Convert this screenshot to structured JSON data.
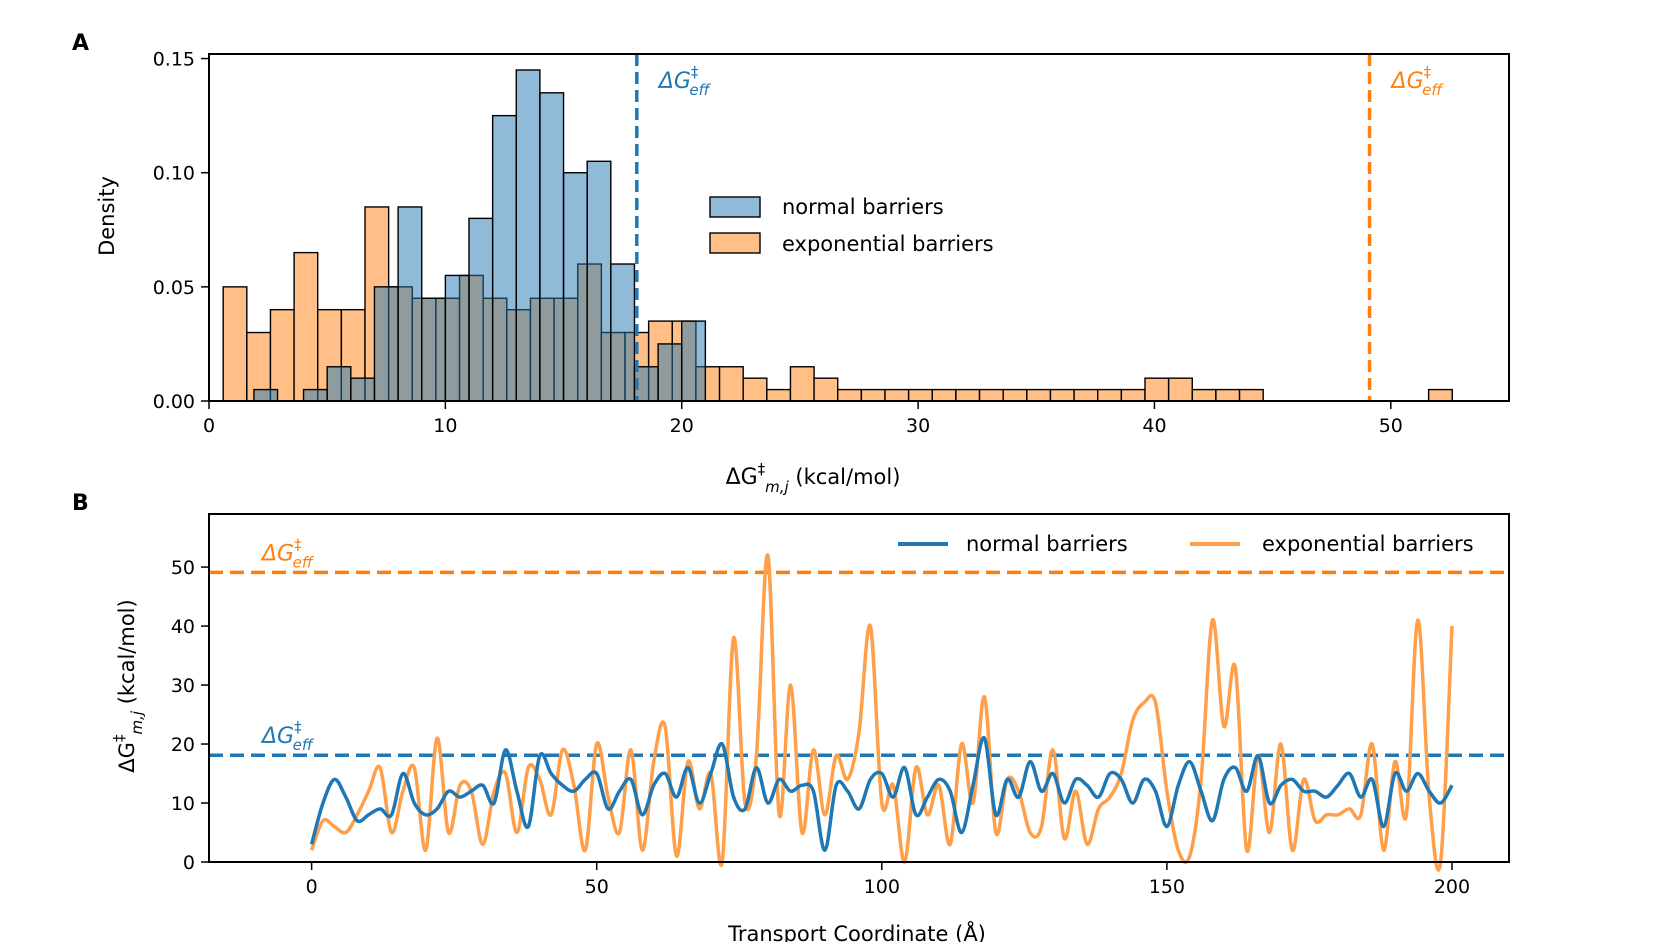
{
  "colors": {
    "blue": "#1f77b4",
    "orange": "#ff7f0e",
    "blue_fill": "#8db4d6",
    "orange_fill": "#ffbf86",
    "line_orange": "#ff9f4a"
  },
  "chart_data": [
    {
      "panel": "A",
      "type": "bar",
      "subtype": "histogram",
      "xlabel": "ΔG‡m,j (kcal/mol)",
      "xlabel_main": "ΔG",
      "xlabel_sup": "‡",
      "xlabel_sub": "m,j",
      "xlabel_unit": " (kcal/mol)",
      "ylabel": "Density",
      "xlim": [
        0,
        55
      ],
      "ylim": [
        0,
        0.152
      ],
      "xticks": [
        0,
        10,
        20,
        30,
        40,
        50
      ],
      "yticks": [
        0.0,
        0.05,
        0.1,
        0.15
      ],
      "ytick_labels": [
        "0.00",
        "0.05",
        "0.10",
        "0.15"
      ],
      "legend_position": "center",
      "series": [
        {
          "name": "normal barriers",
          "bin_width": 1.0,
          "bins": [
            [
              1.9,
              0.005
            ],
            [
              4.0,
              0.005
            ],
            [
              5.0,
              0.015
            ],
            [
              6.0,
              0.01
            ],
            [
              7.0,
              0.05
            ],
            [
              8.0,
              0.085
            ],
            [
              9.0,
              0.045
            ],
            [
              10.0,
              0.055
            ],
            [
              11.0,
              0.08
            ],
            [
              12.0,
              0.125
            ],
            [
              13.0,
              0.145
            ],
            [
              14.0,
              0.135
            ],
            [
              15.0,
              0.1
            ],
            [
              16.0,
              0.105
            ],
            [
              17.0,
              0.06
            ],
            [
              18.0,
              0.015
            ],
            [
              19.0,
              0.025
            ],
            [
              20.0,
              0.035
            ]
          ]
        },
        {
          "name": "exponential barriers",
          "bin_width": 1.0,
          "bins": [
            [
              0.6,
              0.05
            ],
            [
              1.6,
              0.03
            ],
            [
              2.6,
              0.04
            ],
            [
              3.6,
              0.065
            ],
            [
              4.6,
              0.04
            ],
            [
              5.6,
              0.04
            ],
            [
              6.6,
              0.085
            ],
            [
              7.6,
              0.05
            ],
            [
              8.6,
              0.045
            ],
            [
              9.6,
              0.045
            ],
            [
              10.6,
              0.055
            ],
            [
              11.6,
              0.045
            ],
            [
              12.6,
              0.04
            ],
            [
              13.6,
              0.045
            ],
            [
              14.6,
              0.045
            ],
            [
              15.6,
              0.06
            ],
            [
              16.6,
              0.03
            ],
            [
              17.6,
              0.03
            ],
            [
              18.6,
              0.035
            ],
            [
              19.6,
              0.035
            ],
            [
              20.6,
              0.015
            ],
            [
              21.6,
              0.015
            ],
            [
              22.6,
              0.01
            ],
            [
              23.6,
              0.005
            ],
            [
              24.6,
              0.015
            ],
            [
              25.6,
              0.01
            ],
            [
              26.6,
              0.005
            ],
            [
              27.6,
              0.005
            ],
            [
              28.6,
              0.005
            ],
            [
              29.6,
              0.005
            ],
            [
              30.6,
              0.005
            ],
            [
              31.6,
              0.005
            ],
            [
              32.6,
              0.005
            ],
            [
              33.6,
              0.005
            ],
            [
              34.6,
              0.005
            ],
            [
              35.6,
              0.005
            ],
            [
              36.6,
              0.005
            ],
            [
              37.6,
              0.005
            ],
            [
              38.6,
              0.005
            ],
            [
              39.6,
              0.01
            ],
            [
              40.6,
              0.01
            ],
            [
              41.6,
              0.005
            ],
            [
              42.6,
              0.005
            ],
            [
              43.6,
              0.005
            ],
            [
              51.6,
              0.005
            ]
          ]
        }
      ],
      "vlines": [
        {
          "x": 18.1,
          "series": "normal barriers",
          "label_main": "ΔG",
          "label_sup": "‡",
          "label_sub": "eff"
        },
        {
          "x": 49.1,
          "series": "exponential barriers",
          "label_main": "ΔG",
          "label_sup": "‡",
          "label_sub": "eff"
        }
      ]
    },
    {
      "panel": "B",
      "type": "line",
      "xlabel": "Transport Coordinate (Å)",
      "ylabel": "ΔG‡m,j (kcal/mol)",
      "ylabel_main": "ΔG",
      "ylabel_sup": "‡",
      "ylabel_sub": "m,j",
      "ylabel_unit": " (kcal/mol)",
      "xlim": [
        -18,
        210
      ],
      "ylim": [
        0,
        59
      ],
      "xticks": [
        0,
        50,
        100,
        150,
        200
      ],
      "yticks": [
        0,
        10,
        20,
        30,
        40,
        50
      ],
      "legend_position": "top-right",
      "series": [
        {
          "name": "normal barriers",
          "x": [
            0,
            2,
            4,
            6,
            8,
            10,
            12,
            14,
            16,
            18,
            20,
            22,
            24,
            26,
            28,
            30,
            32,
            34,
            36,
            38,
            40,
            42,
            44,
            46,
            48,
            50,
            52,
            54,
            56,
            58,
            60,
            62,
            64,
            66,
            68,
            70,
            72,
            74,
            76,
            78,
            80,
            82,
            84,
            86,
            88,
            90,
            92,
            94,
            96,
            98,
            100,
            102,
            104,
            106,
            108,
            110,
            112,
            114,
            116,
            118,
            120,
            122,
            124,
            126,
            128,
            130,
            132,
            134,
            136,
            138,
            140,
            142,
            144,
            146,
            148,
            150,
            152,
            154,
            156,
            158,
            160,
            162,
            164,
            166,
            168,
            170,
            172,
            174,
            176,
            178,
            180,
            182,
            184,
            186,
            188,
            190,
            192,
            194,
            196,
            198,
            200
          ],
          "values": [
            3,
            10,
            14,
            11,
            7,
            8,
            9,
            8,
            15,
            10,
            8,
            9,
            12,
            11,
            12,
            13,
            10,
            19,
            12,
            6,
            18,
            15,
            13,
            12,
            14,
            15,
            9,
            12,
            14,
            8,
            13,
            15,
            11,
            16,
            10,
            15,
            20,
            11,
            9,
            16,
            10,
            14,
            12,
            13,
            12,
            2,
            13,
            12,
            9,
            14,
            15,
            11,
            16,
            8,
            11,
            14,
            12,
            5,
            13,
            21,
            8,
            14,
            11,
            17,
            12,
            15,
            10,
            14,
            13,
            11,
            15,
            14,
            10,
            14,
            12,
            6,
            13,
            17,
            12,
            7,
            14,
            16,
            12,
            18,
            10,
            13,
            14,
            12,
            12,
            11,
            13,
            15,
            11,
            14,
            6,
            15,
            12,
            15,
            12,
            10,
            13
          ]
        },
        {
          "name": "exponential barriers",
          "x": [
            0,
            2,
            4,
            6,
            8,
            10,
            12,
            14,
            16,
            18,
            20,
            22,
            24,
            26,
            28,
            30,
            32,
            34,
            36,
            38,
            40,
            42,
            44,
            46,
            48,
            50,
            52,
            54,
            56,
            58,
            60,
            62,
            64,
            66,
            68,
            70,
            72,
            74,
            76,
            78,
            80,
            82,
            84,
            86,
            88,
            90,
            92,
            94,
            96,
            98,
            100,
            102,
            104,
            106,
            108,
            110,
            112,
            114,
            116,
            118,
            120,
            122,
            124,
            126,
            128,
            130,
            132,
            134,
            136,
            138,
            140,
            142,
            144,
            146,
            148,
            150,
            152,
            154,
            156,
            158,
            160,
            162,
            164,
            166,
            168,
            170,
            172,
            174,
            176,
            178,
            180,
            182,
            184,
            186,
            188,
            190,
            192,
            194,
            196,
            198,
            200
          ],
          "values": [
            2,
            7,
            6,
            5,
            8,
            12,
            16,
            5,
            12,
            16,
            2,
            21,
            5,
            13,
            12,
            3,
            12,
            15,
            5,
            16,
            14,
            8,
            19,
            13,
            2,
            20,
            11,
            5,
            19,
            2,
            17,
            23,
            1,
            17,
            9,
            15,
            0,
            38,
            10,
            18,
            52,
            8,
            30,
            5,
            19,
            8,
            18,
            14,
            22,
            40,
            10,
            13,
            0,
            16,
            8,
            13,
            3,
            20,
            10,
            28,
            5,
            14,
            12,
            5,
            6,
            19,
            4,
            12,
            3,
            9,
            11,
            15,
            24,
            27,
            27,
            12,
            2,
            1,
            14,
            41,
            23,
            33,
            2,
            18,
            5,
            20,
            2,
            14,
            7,
            8,
            8,
            9,
            8,
            20,
            2,
            17,
            8,
            41,
            11,
            0,
            40
          ]
        }
      ],
      "hlines": [
        {
          "y": 49.1,
          "series": "exponential barriers",
          "label_main": "ΔG",
          "label_sup": "‡",
          "label_sub": "eff"
        },
        {
          "y": 18.1,
          "series": "normal barriers",
          "label_main": "ΔG",
          "label_sup": "‡",
          "label_sub": "eff"
        }
      ]
    }
  ]
}
